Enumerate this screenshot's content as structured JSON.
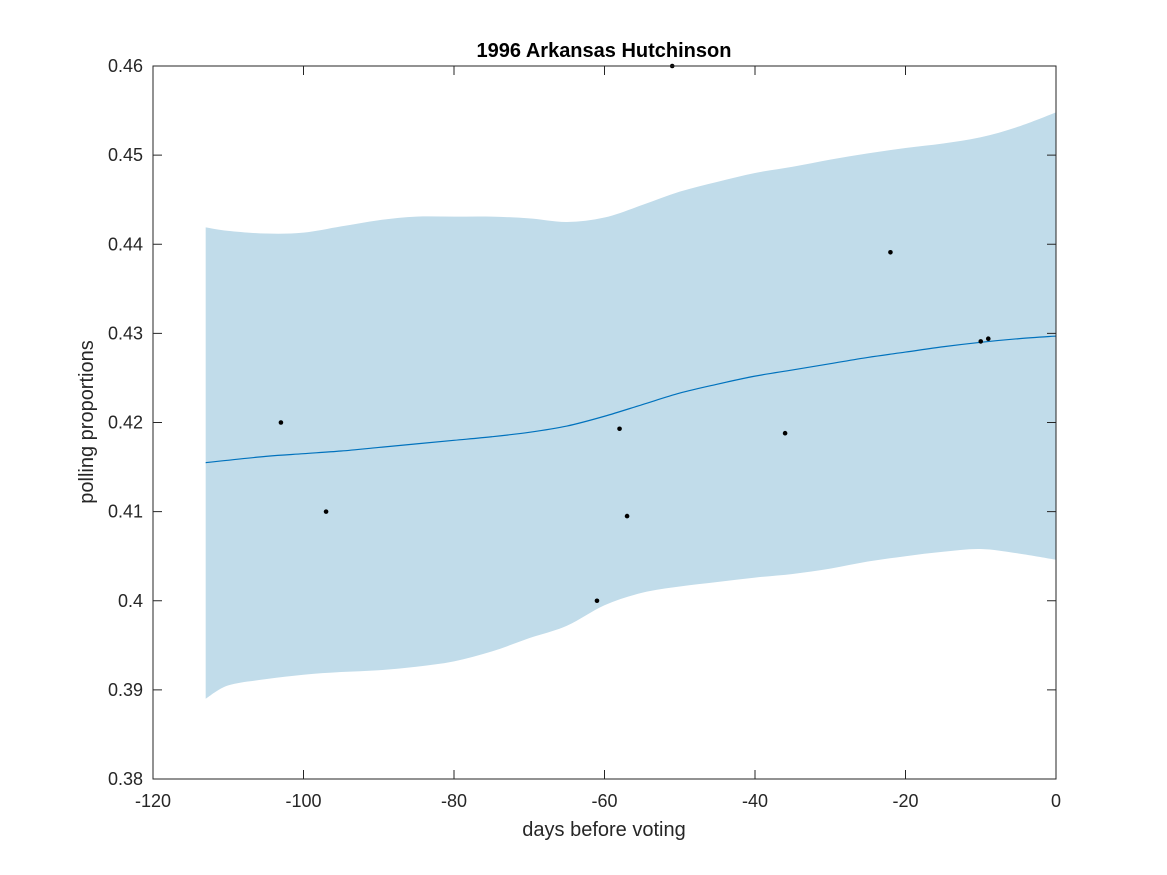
{
  "chart_data": {
    "type": "line",
    "title": "1996 Arkansas Hutchinson",
    "xlabel": "days before voting",
    "ylabel": "polling proportions",
    "xlim": [
      -120,
      0
    ],
    "ylim": [
      0.38,
      0.46
    ],
    "x_ticks": [
      -120,
      -100,
      -80,
      -60,
      -40,
      -20,
      0
    ],
    "x_tick_labels": [
      "-120",
      "-100",
      "-80",
      "-60",
      "-40",
      "-20",
      "0"
    ],
    "y_ticks": [
      0.38,
      0.39,
      0.4,
      0.41,
      0.42,
      0.43,
      0.44,
      0.45,
      0.46
    ],
    "y_tick_labels": [
      "0.38",
      "0.39",
      "0.4",
      "0.41",
      "0.42",
      "0.43",
      "0.44",
      "0.45",
      "0.46"
    ],
    "grid": false,
    "colors": {
      "band": "#c1dcea",
      "line": "#0072bd",
      "points": "#000000",
      "axes": "#262626"
    },
    "series": [
      {
        "kind": "band",
        "x": [
          -113,
          -110,
          -105,
          -100,
          -95,
          -90,
          -85,
          -80,
          -75,
          -70,
          -65,
          -60,
          -55,
          -50,
          -45,
          -40,
          -35,
          -30,
          -25,
          -20,
          -15,
          -10,
          -5,
          0
        ],
        "upper": [
          0.4419,
          0.4415,
          0.4412,
          0.4413,
          0.442,
          0.4427,
          0.4431,
          0.4431,
          0.4431,
          0.4429,
          0.4425,
          0.443,
          0.4444,
          0.4459,
          0.447,
          0.448,
          0.4487,
          0.4495,
          0.4502,
          0.4508,
          0.4513,
          0.452,
          0.4532,
          0.4548
        ],
        "lower": [
          0.389,
          0.3905,
          0.3912,
          0.3917,
          0.392,
          0.3922,
          0.3926,
          0.3932,
          0.3943,
          0.3958,
          0.3972,
          0.3995,
          0.4009,
          0.4016,
          0.4021,
          0.4026,
          0.403,
          0.4036,
          0.4044,
          0.405,
          0.4055,
          0.4058,
          0.4053,
          0.4046
        ]
      },
      {
        "kind": "line",
        "x": [
          -113,
          -105,
          -100,
          -95,
          -90,
          -85,
          -80,
          -75,
          -70,
          -65,
          -60,
          -55,
          -50,
          -45,
          -40,
          -35,
          -30,
          -25,
          -20,
          -15,
          -10,
          -5,
          0
        ],
        "y": [
          0.4155,
          0.4162,
          0.4165,
          0.4168,
          0.4172,
          0.4176,
          0.418,
          0.4184,
          0.4189,
          0.4196,
          0.4207,
          0.422,
          0.4233,
          0.4243,
          0.4252,
          0.4259,
          0.4266,
          0.4273,
          0.4279,
          0.4285,
          0.429,
          0.4294,
          0.4297
        ]
      },
      {
        "kind": "scatter",
        "points": [
          [
            -103,
            0.42
          ],
          [
            -97,
            0.41
          ],
          [
            -61,
            0.4
          ],
          [
            -58,
            0.4193
          ],
          [
            -57,
            0.4095
          ],
          [
            -51,
            0.46
          ],
          [
            -36,
            0.4188
          ],
          [
            -22,
            0.4391
          ],
          [
            -10,
            0.4291
          ],
          [
            -9,
            0.4294
          ]
        ]
      }
    ]
  }
}
